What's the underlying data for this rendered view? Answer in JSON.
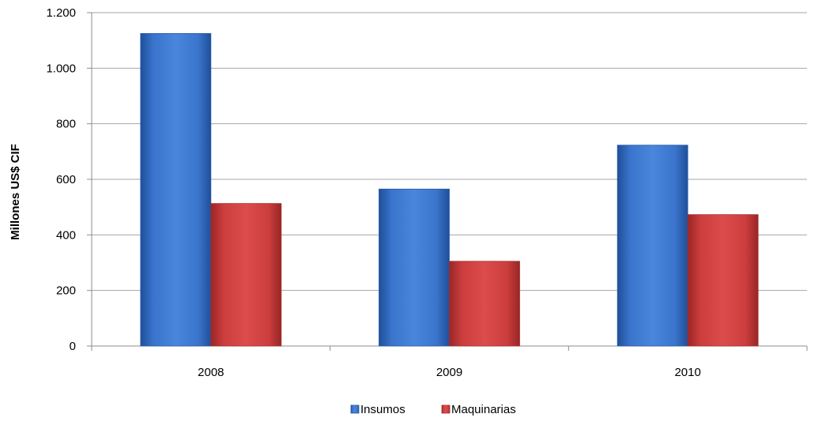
{
  "chart_data": {
    "type": "bar",
    "title": "",
    "xlabel": "",
    "ylabel": "Millones US$ CIF",
    "categories": [
      "2008",
      "2009",
      "2010"
    ],
    "series": [
      {
        "name": "Insumos",
        "values": [
          1125,
          565,
          723
        ],
        "color": "#3a72c8"
      },
      {
        "name": "Maquinarias",
        "values": [
          513,
          305,
          473
        ],
        "color": "#c83b3b"
      }
    ],
    "ylim": [
      0,
      1200
    ],
    "yticks": [
      0,
      200,
      400,
      600,
      800,
      1000,
      1200
    ],
    "ytick_labels": [
      "0",
      "200",
      "400",
      "600",
      "800",
      "1.000",
      "1.200"
    ],
    "grid": true,
    "legend_position": "bottom-center"
  }
}
